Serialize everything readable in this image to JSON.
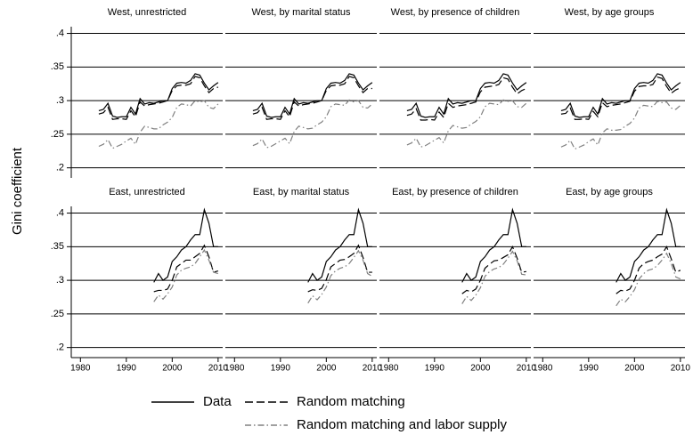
{
  "ylabel": "Gini coefficient",
  "shared": {
    "xlim": [
      1978,
      2011
    ],
    "xticks": [
      1980,
      1990,
      2000,
      2010
    ],
    "ylim": [
      0.185,
      0.41
    ],
    "yticks": [
      {
        "value": 0.2,
        "label": ".2"
      },
      {
        "value": 0.25,
        "label": ".25"
      },
      {
        "value": 0.3,
        "label": ".3"
      },
      {
        "value": 0.35,
        "label": ".35"
      },
      {
        "value": 0.4,
        "label": ".4"
      }
    ],
    "grid": true
  },
  "chart_data": [
    {
      "type": "line",
      "title": "West, unrestricted",
      "x": [
        1984,
        1985,
        1986,
        1987,
        1988,
        1989,
        1990,
        1991,
        1992,
        1993,
        1994,
        1995,
        1996,
        1997,
        1998,
        1999,
        2000,
        2001,
        2002,
        2003,
        2004,
        2005,
        2006,
        2007,
        2008,
        2009,
        2010
      ],
      "series": [
        {
          "name": "Data",
          "color": "#000000",
          "dash": "solid",
          "values": [
            0.285,
            0.287,
            0.296,
            0.277,
            0.275,
            0.276,
            0.276,
            0.29,
            0.28,
            0.303,
            0.295,
            0.297,
            0.296,
            0.298,
            0.3,
            0.3,
            0.318,
            0.326,
            0.327,
            0.326,
            0.33,
            0.34,
            0.338,
            0.326,
            0.316,
            0.322,
            0.327
          ]
        },
        {
          "name": "Random matching",
          "color": "#000000",
          "dash": "dashed",
          "values": [
            0.28,
            0.282,
            0.29,
            0.272,
            0.273,
            0.273,
            0.272,
            0.285,
            0.276,
            0.298,
            0.292,
            0.294,
            0.295,
            0.296,
            0.298,
            0.3,
            0.315,
            0.322,
            0.323,
            0.323,
            0.325,
            0.336,
            0.334,
            0.322,
            0.312,
            0.318,
            0.32
          ]
        },
        {
          "name": "Random matching and labor supply",
          "color": "#808080",
          "dash": "dashdot",
          "values": [
            0.232,
            0.235,
            0.242,
            0.229,
            0.232,
            0.235,
            0.24,
            0.244,
            0.235,
            0.253,
            0.262,
            0.26,
            0.258,
            0.258,
            0.264,
            0.268,
            0.275,
            0.29,
            0.295,
            0.294,
            0.292,
            0.3,
            0.298,
            0.3,
            0.29,
            0.288,
            0.295
          ]
        }
      ]
    },
    {
      "type": "line",
      "title": "West, by marital status",
      "x": [
        1984,
        1985,
        1986,
        1987,
        1988,
        1989,
        1990,
        1991,
        1992,
        1993,
        1994,
        1995,
        1996,
        1997,
        1998,
        1999,
        2000,
        2001,
        2002,
        2003,
        2004,
        2005,
        2006,
        2007,
        2008,
        2009,
        2010
      ],
      "series": [
        {
          "name": "Data",
          "color": "#000000",
          "dash": "solid",
          "values": [
            0.285,
            0.287,
            0.296,
            0.277,
            0.275,
            0.276,
            0.276,
            0.29,
            0.28,
            0.303,
            0.295,
            0.297,
            0.296,
            0.298,
            0.3,
            0.3,
            0.318,
            0.326,
            0.327,
            0.326,
            0.33,
            0.34,
            0.338,
            0.326,
            0.316,
            0.322,
            0.327
          ]
        },
        {
          "name": "Random matching",
          "color": "#000000",
          "dash": "dashed",
          "values": [
            0.28,
            0.282,
            0.29,
            0.272,
            0.273,
            0.273,
            0.272,
            0.285,
            0.276,
            0.298,
            0.292,
            0.294,
            0.295,
            0.296,
            0.298,
            0.3,
            0.315,
            0.322,
            0.323,
            0.323,
            0.325,
            0.336,
            0.334,
            0.322,
            0.312,
            0.318,
            0.318
          ]
        },
        {
          "name": "Random matching and labor supply",
          "color": "#808080",
          "dash": "dashdot",
          "values": [
            0.233,
            0.236,
            0.243,
            0.23,
            0.232,
            0.236,
            0.24,
            0.244,
            0.236,
            0.254,
            0.262,
            0.26,
            0.258,
            0.259,
            0.264,
            0.268,
            0.276,
            0.291,
            0.295,
            0.294,
            0.293,
            0.301,
            0.298,
            0.3,
            0.29,
            0.289,
            0.295
          ]
        }
      ]
    },
    {
      "type": "line",
      "title": "West, by presence of children",
      "x": [
        1984,
        1985,
        1986,
        1987,
        1988,
        1989,
        1990,
        1991,
        1992,
        1993,
        1994,
        1995,
        1996,
        1997,
        1998,
        1999,
        2000,
        2001,
        2002,
        2003,
        2004,
        2005,
        2006,
        2007,
        2008,
        2009,
        2010
      ],
      "series": [
        {
          "name": "Data",
          "color": "#000000",
          "dash": "solid",
          "values": [
            0.285,
            0.287,
            0.296,
            0.277,
            0.275,
            0.276,
            0.276,
            0.29,
            0.28,
            0.303,
            0.295,
            0.297,
            0.296,
            0.298,
            0.3,
            0.3,
            0.318,
            0.326,
            0.327,
            0.326,
            0.33,
            0.34,
            0.338,
            0.326,
            0.316,
            0.322,
            0.327
          ]
        },
        {
          "name": "Random matching",
          "color": "#000000",
          "dash": "dashed",
          "values": [
            0.278,
            0.28,
            0.288,
            0.271,
            0.271,
            0.272,
            0.271,
            0.283,
            0.275,
            0.296,
            0.29,
            0.292,
            0.293,
            0.294,
            0.296,
            0.298,
            0.313,
            0.32,
            0.321,
            0.322,
            0.324,
            0.334,
            0.332,
            0.32,
            0.31,
            0.315,
            0.318
          ]
        },
        {
          "name": "Random matching and labor supply",
          "color": "#808080",
          "dash": "dashdot",
          "values": [
            0.234,
            0.237,
            0.244,
            0.231,
            0.233,
            0.237,
            0.241,
            0.245,
            0.237,
            0.255,
            0.263,
            0.261,
            0.259,
            0.26,
            0.265,
            0.269,
            0.276,
            0.291,
            0.296,
            0.295,
            0.294,
            0.301,
            0.299,
            0.3,
            0.291,
            0.29,
            0.296
          ]
        }
      ]
    },
    {
      "type": "line",
      "title": "West, by age groups",
      "x": [
        1984,
        1985,
        1986,
        1987,
        1988,
        1989,
        1990,
        1991,
        1992,
        1993,
        1994,
        1995,
        1996,
        1997,
        1998,
        1999,
        2000,
        2001,
        2002,
        2003,
        2004,
        2005,
        2006,
        2007,
        2008,
        2009,
        2010
      ],
      "series": [
        {
          "name": "Data",
          "color": "#000000",
          "dash": "solid",
          "values": [
            0.285,
            0.287,
            0.296,
            0.277,
            0.275,
            0.276,
            0.276,
            0.29,
            0.28,
            0.303,
            0.295,
            0.297,
            0.296,
            0.298,
            0.3,
            0.3,
            0.318,
            0.326,
            0.327,
            0.326,
            0.33,
            0.34,
            0.338,
            0.326,
            0.316,
            0.322,
            0.327
          ]
        },
        {
          "name": "Random matching",
          "color": "#000000",
          "dash": "dashed",
          "values": [
            0.28,
            0.281,
            0.289,
            0.272,
            0.272,
            0.273,
            0.272,
            0.284,
            0.276,
            0.297,
            0.291,
            0.293,
            0.294,
            0.295,
            0.297,
            0.299,
            0.314,
            0.321,
            0.322,
            0.322,
            0.324,
            0.335,
            0.333,
            0.321,
            0.311,
            0.316,
            0.319
          ]
        },
        {
          "name": "Random matching and labor supply",
          "color": "#808080",
          "dash": "dashdot",
          "values": [
            0.231,
            0.234,
            0.241,
            0.228,
            0.231,
            0.234,
            0.239,
            0.243,
            0.234,
            0.252,
            0.258,
            0.256,
            0.256,
            0.257,
            0.262,
            0.266,
            0.274,
            0.289,
            0.293,
            0.292,
            0.291,
            0.299,
            0.297,
            0.298,
            0.289,
            0.287,
            0.293
          ]
        }
      ]
    },
    {
      "type": "line",
      "title": "East, unrestricted",
      "x": [
        1996,
        1997,
        1998,
        1999,
        2000,
        2001,
        2002,
        2003,
        2004,
        2005,
        2006,
        2007,
        2008,
        2009,
        2010
      ],
      "series": [
        {
          "name": "Data",
          "color": "#000000",
          "dash": "solid",
          "values": [
            0.297,
            0.31,
            0.3,
            0.305,
            0.328,
            0.335,
            0.345,
            0.35,
            0.36,
            0.368,
            0.368,
            0.405,
            0.385,
            0.35,
            0.35
          ]
        },
        {
          "name": "Random matching",
          "color": "#000000",
          "dash": "dashed",
          "values": [
            0.283,
            0.285,
            0.285,
            0.287,
            0.3,
            0.32,
            0.325,
            0.33,
            0.33,
            0.335,
            0.34,
            0.352,
            0.335,
            0.312,
            0.314
          ]
        },
        {
          "name": "Random matching and labor supply",
          "color": "#808080",
          "dash": "dashdot",
          "values": [
            0.268,
            0.278,
            0.272,
            0.28,
            0.29,
            0.308,
            0.315,
            0.318,
            0.32,
            0.325,
            0.335,
            0.345,
            0.33,
            0.312,
            0.31
          ]
        }
      ]
    },
    {
      "type": "line",
      "title": "East, by marital status",
      "x": [
        1996,
        1997,
        1998,
        1999,
        2000,
        2001,
        2002,
        2003,
        2004,
        2005,
        2006,
        2007,
        2008,
        2009,
        2010
      ],
      "series": [
        {
          "name": "Data",
          "color": "#000000",
          "dash": "solid",
          "values": [
            0.297,
            0.31,
            0.3,
            0.305,
            0.328,
            0.335,
            0.345,
            0.35,
            0.36,
            0.368,
            0.368,
            0.405,
            0.385,
            0.35,
            0.35
          ]
        },
        {
          "name": "Random matching",
          "color": "#000000",
          "dash": "dashed",
          "values": [
            0.283,
            0.286,
            0.285,
            0.288,
            0.301,
            0.32,
            0.325,
            0.33,
            0.331,
            0.335,
            0.34,
            0.352,
            0.334,
            0.312,
            0.312
          ]
        },
        {
          "name": "Random matching and labor supply",
          "color": "#808080",
          "dash": "dashdot",
          "values": [
            0.266,
            0.277,
            0.271,
            0.279,
            0.29,
            0.307,
            0.314,
            0.318,
            0.32,
            0.325,
            0.334,
            0.344,
            0.33,
            0.31,
            0.306
          ]
        }
      ]
    },
    {
      "type": "line",
      "title": "East, by presence of children",
      "x": [
        1996,
        1997,
        1998,
        1999,
        2000,
        2001,
        2002,
        2003,
        2004,
        2005,
        2006,
        2007,
        2008,
        2009,
        2010
      ],
      "series": [
        {
          "name": "Data",
          "color": "#000000",
          "dash": "solid",
          "values": [
            0.297,
            0.31,
            0.3,
            0.305,
            0.328,
            0.335,
            0.345,
            0.35,
            0.36,
            0.368,
            0.368,
            0.405,
            0.385,
            0.35,
            0.35
          ]
        },
        {
          "name": "Random matching",
          "color": "#000000",
          "dash": "dashed",
          "values": [
            0.28,
            0.285,
            0.283,
            0.287,
            0.3,
            0.318,
            0.324,
            0.329,
            0.33,
            0.334,
            0.338,
            0.35,
            0.333,
            0.312,
            0.313
          ]
        },
        {
          "name": "Random matching and labor supply",
          "color": "#808080",
          "dash": "dashdot",
          "values": [
            0.265,
            0.276,
            0.27,
            0.278,
            0.289,
            0.306,
            0.313,
            0.317,
            0.319,
            0.324,
            0.333,
            0.343,
            0.329,
            0.309,
            0.308
          ]
        }
      ]
    },
    {
      "type": "line",
      "title": "East, by age groups",
      "x": [
        1996,
        1997,
        1998,
        1999,
        2000,
        2001,
        2002,
        2003,
        2004,
        2005,
        2006,
        2007,
        2008,
        2009,
        2010
      ],
      "series": [
        {
          "name": "Data",
          "color": "#000000",
          "dash": "solid",
          "values": [
            0.297,
            0.31,
            0.3,
            0.305,
            0.328,
            0.335,
            0.345,
            0.35,
            0.36,
            0.368,
            0.368,
            0.405,
            0.385,
            0.35,
            0.35
          ]
        },
        {
          "name": "Random matching",
          "color": "#000000",
          "dash": "dashed",
          "values": [
            0.28,
            0.285,
            0.284,
            0.287,
            0.3,
            0.318,
            0.325,
            0.328,
            0.33,
            0.335,
            0.339,
            0.35,
            0.332,
            0.312,
            0.315
          ]
        },
        {
          "name": "Random matching and labor supply",
          "color": "#808080",
          "dash": "dashdot",
          "values": [
            0.262,
            0.272,
            0.268,
            0.276,
            0.286,
            0.302,
            0.31,
            0.315,
            0.317,
            0.322,
            0.33,
            0.34,
            0.325,
            0.305,
            0.302
          ]
        }
      ]
    }
  ]
}
